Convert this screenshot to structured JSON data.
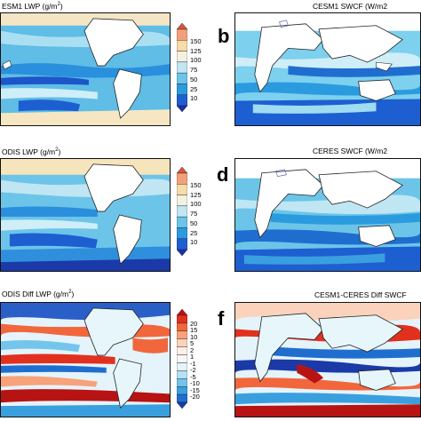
{
  "panels": {
    "a": {
      "title": "ESM1 LWP (g/m",
      "unit_sup": "2",
      "unit_close": ")"
    },
    "b": {
      "label": "b",
      "title": "CESM1 SWCF (W/m2"
    },
    "c": {
      "title": "ODIS LWP (g/m",
      "unit_sup": "2",
      "unit_close": ")"
    },
    "d": {
      "label": "d",
      "title": "CERES SWCF (W/m2"
    },
    "e": {
      "title": "ODIS Diff LWP (g/m",
      "unit_sup": "2",
      "unit_close": ")"
    },
    "f": {
      "label": "f",
      "title": "CESM1-CERES Diff SWCF"
    }
  },
  "colorbar_lwp": {
    "ticks": [
      "150",
      "125",
      "100",
      "75",
      "50",
      "25",
      "10"
    ],
    "colors": [
      "#d7553a",
      "#f3a07a",
      "#f7dba8",
      "#f3f1e1",
      "#bfe6f2",
      "#6cc5e8",
      "#2b9be0",
      "#1d5fd1",
      "#1b2fa8"
    ]
  },
  "colorbar_diff": {
    "ticks": [
      "20",
      "15",
      "10",
      "5",
      "2",
      "1",
      "-1",
      "-2",
      "-5",
      "-10",
      "-15",
      "-20"
    ],
    "colors": [
      "#b81313",
      "#e2301f",
      "#f2663c",
      "#f7a27a",
      "#fbd3bd",
      "#fdf0e6",
      "#f7f7f7",
      "#e5f3fb",
      "#b5e1f5",
      "#74c5ec",
      "#3a9fdf",
      "#1f6ecf",
      "#1b3aa8"
    ]
  }
}
